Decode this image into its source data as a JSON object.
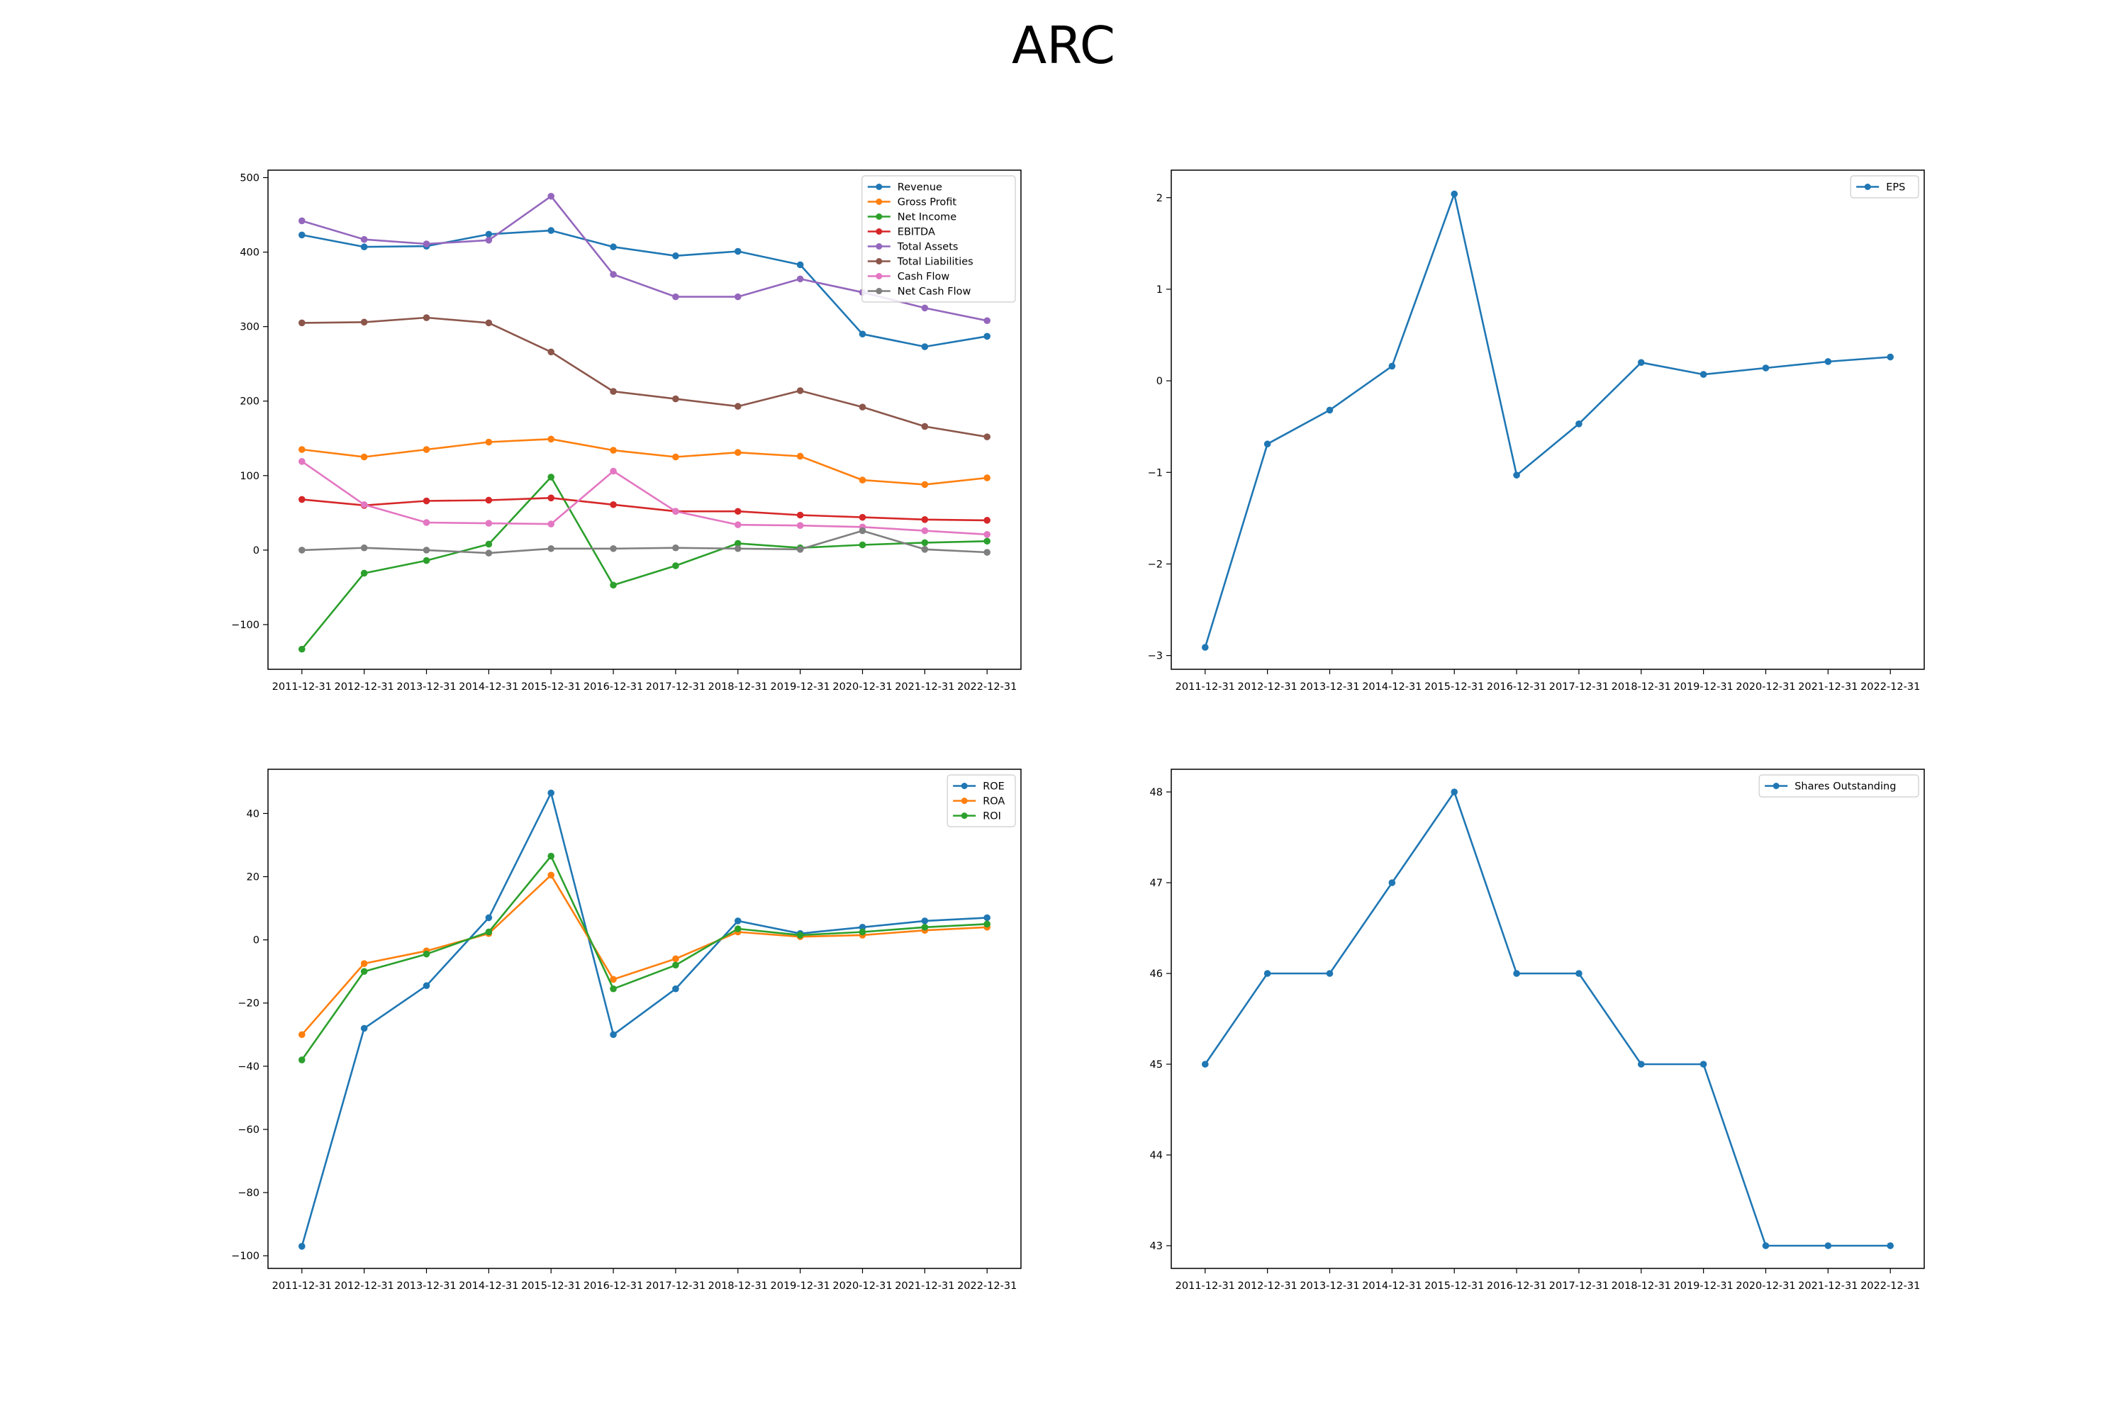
{
  "title": "ARC",
  "colors": {
    "blue": "#1f77b4",
    "orange": "#ff7f0e",
    "green": "#2ca02c",
    "red": "#d62728",
    "purple": "#9467bd",
    "brown": "#8c564b",
    "pink": "#e377c2",
    "gray": "#7f7f7f"
  },
  "chart_data": [
    {
      "type": "line",
      "categories": [
        "2011-12-31",
        "2012-12-31",
        "2013-12-31",
        "2014-12-31",
        "2015-12-31",
        "2016-12-31",
        "2017-12-31",
        "2018-12-31",
        "2019-12-31",
        "2020-12-31",
        "2021-12-31",
        "2022-12-31"
      ],
      "ylim": [
        -160,
        510
      ],
      "yticks": [
        -100,
        0,
        100,
        200,
        300,
        400,
        500
      ],
      "legend": "top-right",
      "series": [
        {
          "name": "Revenue",
          "color": "#1f77b4",
          "values": [
            423,
            407,
            408,
            424,
            429,
            407,
            395,
            401,
            383,
            290,
            273,
            287
          ]
        },
        {
          "name": "Gross Profit",
          "color": "#ff7f0e",
          "values": [
            135,
            125,
            135,
            145,
            149,
            134,
            125,
            131,
            126,
            94,
            88,
            97
          ]
        },
        {
          "name": "Net Income",
          "color": "#2ca02c",
          "values": [
            -133,
            -31,
            -14,
            8,
            98,
            -47,
            -21,
            9,
            3,
            7,
            10,
            12
          ]
        },
        {
          "name": "EBITDA",
          "color": "#d62728",
          "values": [
            68,
            60,
            66,
            67,
            70,
            61,
            52,
            52,
            47,
            44,
            41,
            40
          ]
        },
        {
          "name": "Total Assets",
          "color": "#9467bd",
          "values": [
            442,
            417,
            411,
            416,
            475,
            370,
            340,
            340,
            364,
            346,
            325,
            308
          ]
        },
        {
          "name": "Total Liabilities",
          "color": "#8c564b",
          "values": [
            305,
            306,
            312,
            305,
            266,
            213,
            203,
            193,
            214,
            192,
            166,
            152
          ]
        },
        {
          "name": "Cash Flow",
          "color": "#e377c2",
          "values": [
            119,
            61,
            37,
            36,
            35,
            106,
            52,
            34,
            33,
            31,
            26,
            21
          ]
        },
        {
          "name": "Net Cash Flow",
          "color": "#7f7f7f",
          "values": [
            0,
            3,
            0,
            -4,
            2,
            2,
            3,
            2,
            1,
            26,
            1,
            -3
          ]
        }
      ]
    },
    {
      "type": "line",
      "categories": [
        "2011-12-31",
        "2012-12-31",
        "2013-12-31",
        "2014-12-31",
        "2015-12-31",
        "2016-12-31",
        "2017-12-31",
        "2018-12-31",
        "2019-12-31",
        "2020-12-31",
        "2021-12-31",
        "2022-12-31"
      ],
      "ylim": [
        -3.15,
        2.3
      ],
      "yticks": [
        -3,
        -2,
        -1,
        0,
        1,
        2
      ],
      "legend": "top-right",
      "series": [
        {
          "name": "EPS",
          "color": "#1f77b4",
          "values": [
            -2.91,
            -0.69,
            -0.32,
            0.16,
            2.04,
            -1.03,
            -0.47,
            0.2,
            0.07,
            0.14,
            0.21,
            0.26
          ]
        }
      ]
    },
    {
      "type": "line",
      "categories": [
        "2011-12-31",
        "2012-12-31",
        "2013-12-31",
        "2014-12-31",
        "2015-12-31",
        "2016-12-31",
        "2017-12-31",
        "2018-12-31",
        "2019-12-31",
        "2020-12-31",
        "2021-12-31",
        "2022-12-31"
      ],
      "ylim": [
        -104,
        54
      ],
      "yticks": [
        -100,
        -80,
        -60,
        -40,
        -20,
        0,
        20,
        40
      ],
      "legend": "top-right",
      "series": [
        {
          "name": "ROE",
          "color": "#1f77b4",
          "values": [
            -97,
            -28,
            -14.5,
            7,
            46.5,
            -30,
            -15.5,
            6,
            2,
            4,
            6,
            7
          ]
        },
        {
          "name": "ROA",
          "color": "#ff7f0e",
          "values": [
            -30,
            -7.5,
            -3.5,
            2,
            20.5,
            -12.5,
            -6,
            2.5,
            1,
            1.5,
            3,
            4
          ]
        },
        {
          "name": "ROI",
          "color": "#2ca02c",
          "values": [
            -38,
            -10,
            -4.5,
            2.5,
            26.5,
            -15.5,
            -8,
            3.5,
            1.5,
            2.5,
            4,
            5
          ]
        }
      ]
    },
    {
      "type": "line",
      "categories": [
        "2011-12-31",
        "2012-12-31",
        "2013-12-31",
        "2014-12-31",
        "2015-12-31",
        "2016-12-31",
        "2017-12-31",
        "2018-12-31",
        "2019-12-31",
        "2020-12-31",
        "2021-12-31",
        "2022-12-31"
      ],
      "ylim": [
        42.75,
        48.25
      ],
      "yticks": [
        43,
        44,
        45,
        46,
        47,
        48
      ],
      "legend": "top-right",
      "series": [
        {
          "name": "Shares Outstanding",
          "color": "#1f77b4",
          "values": [
            45,
            46,
            46,
            47,
            48,
            46,
            46,
            45,
            45,
            43,
            43,
            43
          ]
        }
      ]
    }
  ]
}
